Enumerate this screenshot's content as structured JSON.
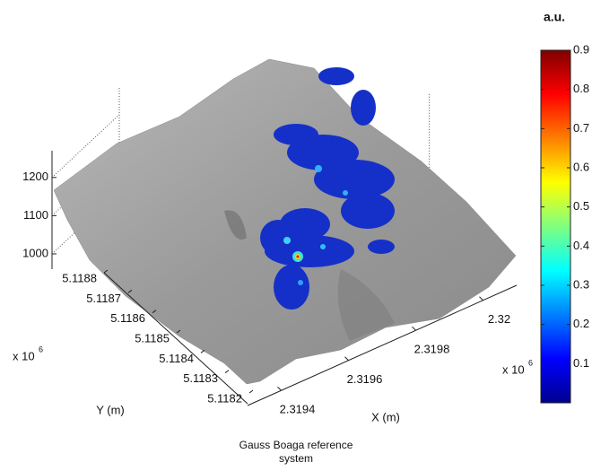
{
  "chart_data": {
    "type": "surface3d",
    "caption": [
      "Gauss Boaga reference",
      "system"
    ],
    "xlabel": "X (m)",
    "ylabel": "Y (m)",
    "xticks": [
      2.3194,
      2.3196,
      2.3198,
      2.32
    ],
    "xlim": [
      2.3193,
      2.3201
    ],
    "x_offset": {
      "base": "x 10",
      "exponent": "6"
    },
    "yticks": [
      5.1182,
      5.1183,
      5.1184,
      5.1185,
      5.1186,
      5.1187,
      5.1188
    ],
    "ylim": [
      5.1182,
      5.1188
    ],
    "y_offset": {
      "base": "x 10",
      "exponent": "6"
    },
    "zticks": [
      1000,
      1100,
      1200
    ],
    "zlim": [
      960,
      1270
    ],
    "grid": true,
    "colorbar": {
      "label": "a.u.",
      "colormap": "jet",
      "clim": [
        0,
        0.9
      ],
      "ticks": [
        0.1,
        0.2,
        0.3,
        0.4,
        0.5,
        0.6,
        0.7,
        0.8,
        0.9
      ]
    }
  }
}
